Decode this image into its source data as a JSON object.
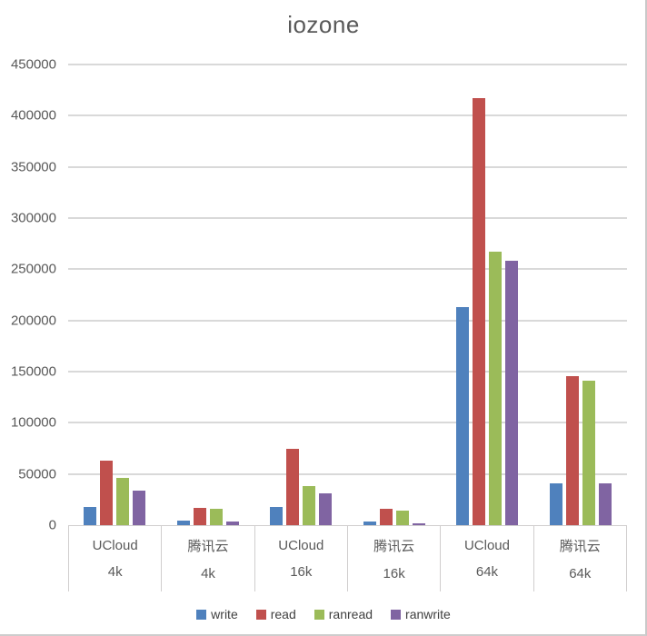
{
  "chart_data": {
    "type": "bar",
    "title": "iozone",
    "categories": [
      {
        "provider": "UCloud",
        "block_size": "4k"
      },
      {
        "provider": "腾讯云",
        "block_size": "4k"
      },
      {
        "provider": "UCloud",
        "block_size": "16k"
      },
      {
        "provider": "腾讯云",
        "block_size": "16k"
      },
      {
        "provider": "UCloud",
        "block_size": "64k"
      },
      {
        "provider": "腾讯云",
        "block_size": "64k"
      }
    ],
    "series": [
      {
        "name": "write",
        "color": "#4F81BD",
        "values": [
          18000,
          4500,
          18000,
          4000,
          213000,
          41000
        ]
      },
      {
        "name": "read",
        "color": "#C0504D",
        "values": [
          63000,
          16500,
          74500,
          16000,
          417000,
          146000
        ]
      },
      {
        "name": "ranread",
        "color": "#9BBB59",
        "values": [
          46000,
          16000,
          38500,
          14500,
          267500,
          141500
        ]
      },
      {
        "name": "ranwrite",
        "color": "#8064A2",
        "values": [
          34000,
          4000,
          31500,
          2000,
          258500,
          40500
        ]
      }
    ],
    "y_axis": {
      "min": 0,
      "max": 450000,
      "tick_interval": 50000,
      "ticks": [
        450000,
        400000,
        350000,
        300000,
        250000,
        200000,
        150000,
        100000,
        50000,
        0
      ]
    },
    "grid": true,
    "legend_position": "bottom",
    "colors": {
      "axis_text": "#595959",
      "gridline": "#d9d9d9",
      "category_border": "#d0cece",
      "legend_text": "#404040"
    }
  }
}
